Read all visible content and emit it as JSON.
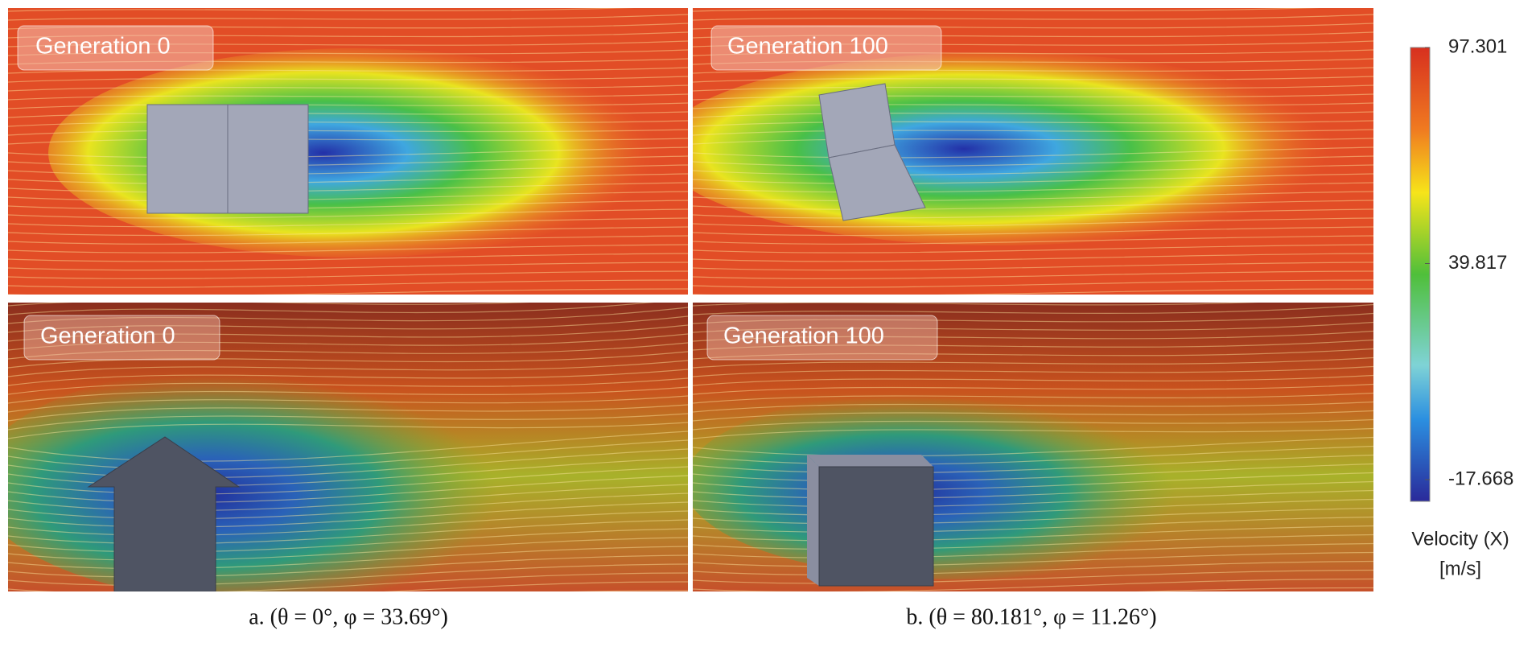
{
  "panels": [
    {
      "label": "Generation 0"
    },
    {
      "label": "Generation 100"
    },
    {
      "label": "Generation 0"
    },
    {
      "label": "Generation 100"
    }
  ],
  "colorbar": {
    "ticks": [
      97.301,
      39.817,
      -17.668
    ],
    "title": "Velocity (X)",
    "unit": "[m/s]"
  },
  "captions": [
    "a. (θ = 0°, φ = 33.69°)",
    "b. (θ = 80.181°, φ = 11.26°)"
  ]
}
